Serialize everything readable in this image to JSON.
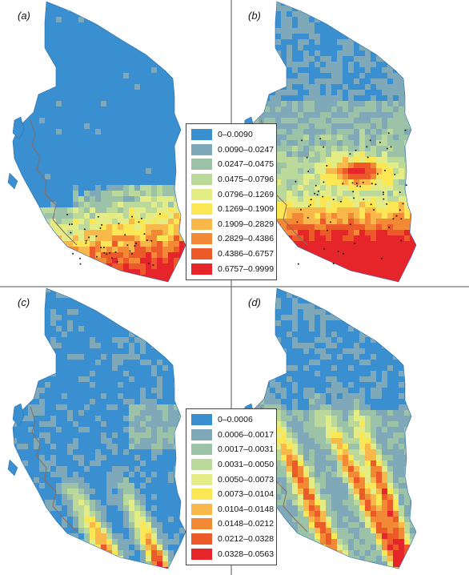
{
  "panels": [
    {
      "label": "(a)",
      "legend": "top"
    },
    {
      "label": "(b)",
      "legend": "top"
    },
    {
      "label": "(c)",
      "legend": "bottom"
    },
    {
      "label": "(d)",
      "legend": "bottom"
    }
  ],
  "legend_top": {
    "classes": [
      {
        "label": "0–0.0090",
        "color": "#3a8fd0"
      },
      {
        "label": "0.0090–0.0247",
        "color": "#7fa9b8"
      },
      {
        "label": "0.0247–0.0475",
        "color": "#9cc3a8"
      },
      {
        "label": "0.0475–0.0796",
        "color": "#bad99b"
      },
      {
        "label": "0.0796–0.1269",
        "color": "#e3ec85"
      },
      {
        "label": "0.1269–0.1909",
        "color": "#fbe653"
      },
      {
        "label": "0.1909–0.2829",
        "color": "#f8b84a"
      },
      {
        "label": "0.2829–0.4386",
        "color": "#f28a35"
      },
      {
        "label": "0.4386–0.6757",
        "color": "#ec5a2a"
      },
      {
        "label": "0.6757–0.9999",
        "color": "#e6252a"
      }
    ]
  },
  "legend_bottom": {
    "classes": [
      {
        "label": "0–0.0006",
        "color": "#3a8fd0"
      },
      {
        "label": "0.0006–0.0017",
        "color": "#7fa9b8"
      },
      {
        "label": "0.0017–0.0031",
        "color": "#9cc3a8"
      },
      {
        "label": "0.0031–0.0050",
        "color": "#bad99b"
      },
      {
        "label": "0.0050–0.0073",
        "color": "#e3ec85"
      },
      {
        "label": "0.0073–0.0104",
        "color": "#fbe653"
      },
      {
        "label": "0.0104–0.0148",
        "color": "#f8b84a"
      },
      {
        "label": "0.0148–0.0212",
        "color": "#f28a35"
      },
      {
        "label": "0.0212–0.0328",
        "color": "#ec5a2a"
      },
      {
        "label": "0.0328–0.0563",
        "color": "#e6252a"
      }
    ]
  },
  "colors": {
    "divider": "#555555",
    "coastline": "#8a6a5a",
    "points": "#1a1a1a"
  }
}
